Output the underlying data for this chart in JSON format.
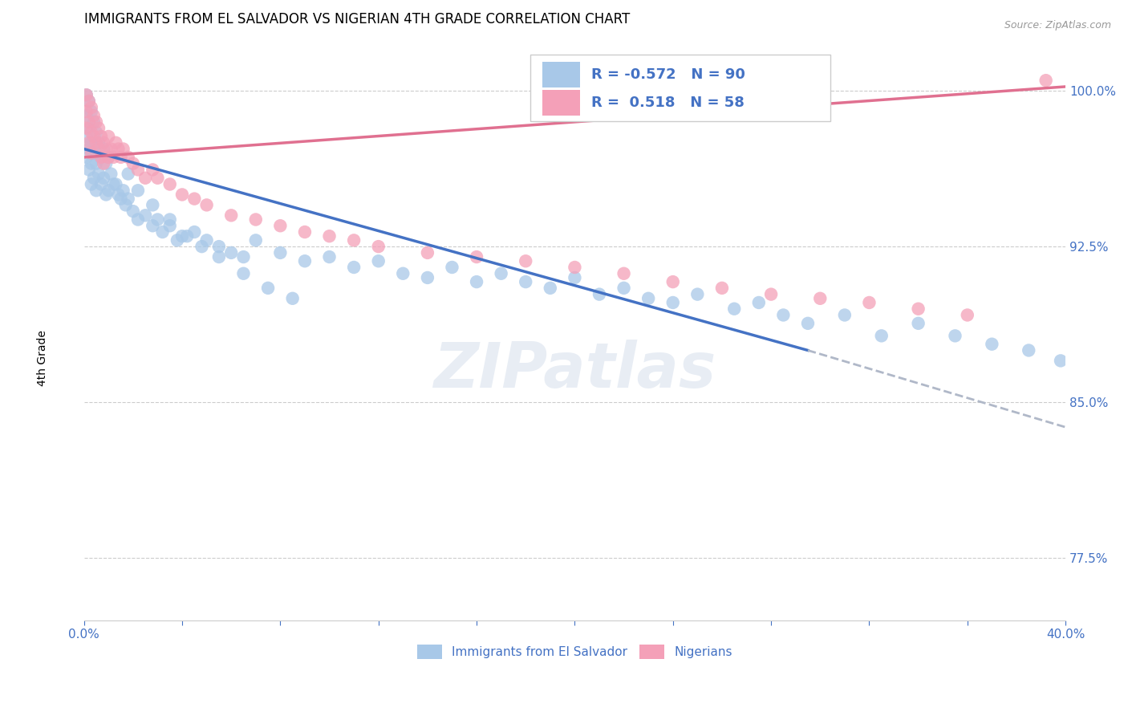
{
  "title": "IMMIGRANTS FROM EL SALVADOR VS NIGERIAN 4TH GRADE CORRELATION CHART",
  "source": "Source: ZipAtlas.com",
  "ylabel": "4th Grade",
  "ytick_vals": [
    0.775,
    0.85,
    0.925,
    1.0
  ],
  "ytick_labels": [
    "77.5%",
    "85.0%",
    "92.5%",
    "100.0%"
  ],
  "xlim": [
    0.0,
    0.4
  ],
  "ylim": [
    0.745,
    1.025
  ],
  "legend_blue_r": "-0.572",
  "legend_blue_n": "90",
  "legend_pink_r": "0.518",
  "legend_pink_n": "58",
  "legend_label_blue": "Immigrants from El Salvador",
  "legend_label_pink": "Nigerians",
  "blue_color": "#a8c8e8",
  "pink_color": "#f4a0b8",
  "trendline_blue_color": "#4472c4",
  "trendline_pink_color": "#e07090",
  "trendline_ext_color": "#b0b8c8",
  "watermark": "ZIPatlas",
  "blue_trendline_x0": 0.0,
  "blue_trendline_y0": 0.972,
  "blue_trendline_x1": 0.295,
  "blue_trendline_y1": 0.875,
  "blue_trendline_xdash0": 0.295,
  "blue_trendline_ydash0": 0.875,
  "blue_trendline_xdash1": 0.4,
  "blue_trendline_ydash1": 0.838,
  "pink_trendline_x0": 0.0,
  "pink_trendline_y0": 0.968,
  "pink_trendline_x1": 0.4,
  "pink_trendline_y1": 1.002,
  "blue_x": [
    0.001,
    0.001,
    0.001,
    0.001,
    0.002,
    0.002,
    0.002,
    0.002,
    0.003,
    0.003,
    0.003,
    0.003,
    0.004,
    0.004,
    0.004,
    0.005,
    0.005,
    0.005,
    0.006,
    0.006,
    0.007,
    0.007,
    0.008,
    0.008,
    0.009,
    0.009,
    0.01,
    0.01,
    0.011,
    0.012,
    0.013,
    0.014,
    0.015,
    0.016,
    0.017,
    0.018,
    0.02,
    0.022,
    0.025,
    0.028,
    0.03,
    0.032,
    0.035,
    0.038,
    0.04,
    0.045,
    0.05,
    0.055,
    0.06,
    0.065,
    0.07,
    0.08,
    0.09,
    0.1,
    0.11,
    0.12,
    0.13,
    0.14,
    0.15,
    0.16,
    0.17,
    0.18,
    0.19,
    0.2,
    0.21,
    0.22,
    0.23,
    0.24,
    0.25,
    0.265,
    0.275,
    0.285,
    0.295,
    0.31,
    0.325,
    0.34,
    0.355,
    0.37,
    0.385,
    0.398,
    0.018,
    0.022,
    0.028,
    0.035,
    0.042,
    0.048,
    0.055,
    0.065,
    0.075,
    0.085
  ],
  "blue_y": [
    0.998,
    0.988,
    0.978,
    0.968,
    0.995,
    0.982,
    0.972,
    0.962,
    0.99,
    0.975,
    0.965,
    0.955,
    0.985,
    0.97,
    0.958,
    0.98,
    0.965,
    0.952,
    0.975,
    0.96,
    0.968,
    0.955,
    0.972,
    0.958,
    0.965,
    0.95,
    0.968,
    0.952,
    0.96,
    0.955,
    0.955,
    0.95,
    0.948,
    0.952,
    0.945,
    0.948,
    0.942,
    0.938,
    0.94,
    0.935,
    0.938,
    0.932,
    0.935,
    0.928,
    0.93,
    0.932,
    0.928,
    0.925,
    0.922,
    0.92,
    0.928,
    0.922,
    0.918,
    0.92,
    0.915,
    0.918,
    0.912,
    0.91,
    0.915,
    0.908,
    0.912,
    0.908,
    0.905,
    0.91,
    0.902,
    0.905,
    0.9,
    0.898,
    0.902,
    0.895,
    0.898,
    0.892,
    0.888,
    0.892,
    0.882,
    0.888,
    0.882,
    0.878,
    0.875,
    0.87,
    0.96,
    0.952,
    0.945,
    0.938,
    0.93,
    0.925,
    0.92,
    0.912,
    0.905,
    0.9
  ],
  "pink_x": [
    0.001,
    0.001,
    0.001,
    0.002,
    0.002,
    0.002,
    0.003,
    0.003,
    0.003,
    0.004,
    0.004,
    0.005,
    0.005,
    0.006,
    0.006,
    0.007,
    0.007,
    0.008,
    0.008,
    0.009,
    0.01,
    0.01,
    0.011,
    0.012,
    0.013,
    0.014,
    0.015,
    0.016,
    0.018,
    0.02,
    0.022,
    0.025,
    0.028,
    0.03,
    0.035,
    0.04,
    0.045,
    0.05,
    0.06,
    0.07,
    0.08,
    0.09,
    0.1,
    0.11,
    0.12,
    0.14,
    0.16,
    0.18,
    0.2,
    0.22,
    0.24,
    0.26,
    0.28,
    0.3,
    0.32,
    0.34,
    0.36,
    0.392
  ],
  "pink_y": [
    0.998,
    0.99,
    0.982,
    0.995,
    0.985,
    0.975,
    0.992,
    0.98,
    0.97,
    0.988,
    0.978,
    0.985,
    0.975,
    0.982,
    0.972,
    0.978,
    0.968,
    0.975,
    0.965,
    0.972,
    0.978,
    0.968,
    0.972,
    0.968,
    0.975,
    0.972,
    0.968,
    0.972,
    0.968,
    0.965,
    0.962,
    0.958,
    0.962,
    0.958,
    0.955,
    0.95,
    0.948,
    0.945,
    0.94,
    0.938,
    0.935,
    0.932,
    0.93,
    0.928,
    0.925,
    0.922,
    0.92,
    0.918,
    0.915,
    0.912,
    0.908,
    0.905,
    0.902,
    0.9,
    0.898,
    0.895,
    0.892,
    1.005
  ]
}
